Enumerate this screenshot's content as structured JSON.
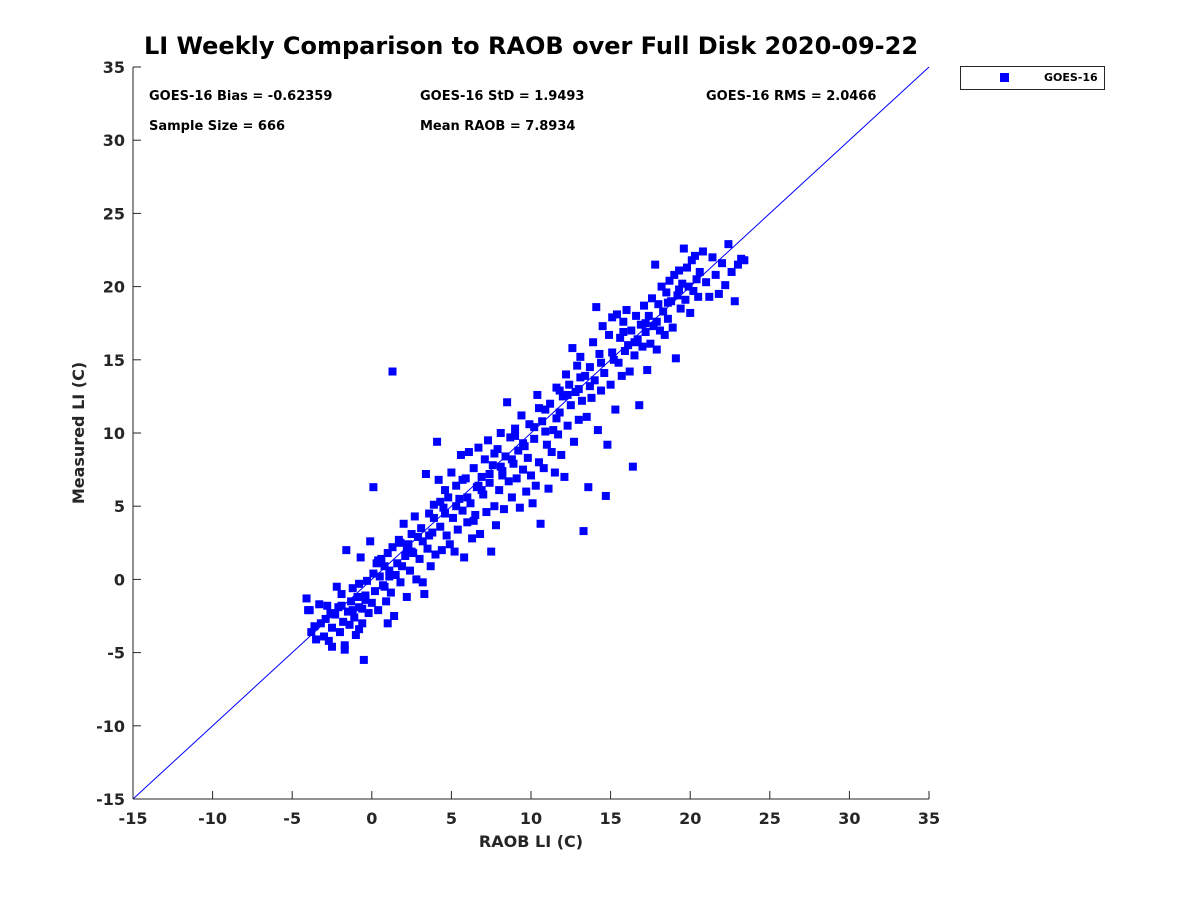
{
  "chart_data": {
    "type": "scatter",
    "title": "LI Weekly Comparison to RAOB over Full Disk 2020-09-22",
    "xlabel": "RAOB LI (C)",
    "ylabel": "Measured LI (C)",
    "xlim": [
      -15,
      35
    ],
    "ylim": [
      -15,
      35
    ],
    "xticks": [
      -15,
      -10,
      -5,
      0,
      5,
      10,
      15,
      20,
      25,
      30,
      35
    ],
    "yticks": [
      -15,
      -10,
      -5,
      0,
      5,
      10,
      15,
      20,
      25,
      30,
      35
    ],
    "legend": {
      "position": "outside-top-right",
      "entries": [
        "GOES-16"
      ]
    },
    "stats": {
      "bias": "GOES-16 Bias = -0.62359",
      "std": "GOES-16 StD = 1.9493",
      "rms": "GOES-16 RMS = 2.0466",
      "sample": "Sample Size = 666",
      "mean": "Mean RAOB = 7.8934"
    },
    "reference_line": {
      "name": "1:1 line",
      "from": [
        -15,
        -15
      ],
      "to": [
        35,
        35
      ]
    },
    "series": [
      {
        "name": "GOES-16",
        "color": "#0000ff",
        "marker": "square",
        "points": [
          [
            -4.1,
            -1.3
          ],
          [
            -3.9,
            -2.1
          ],
          [
            -3.8,
            -3.6
          ],
          [
            -3.6,
            -3.2
          ],
          [
            -3.5,
            -4.1
          ],
          [
            -3.2,
            -3.0
          ],
          [
            -3.0,
            -3.9
          ],
          [
            -2.9,
            -2.7
          ],
          [
            -2.8,
            -1.8
          ],
          [
            -2.7,
            -4.2
          ],
          [
            -2.5,
            -3.3
          ],
          [
            -2.5,
            -4.6
          ],
          [
            -2.3,
            -2.4
          ],
          [
            -2.2,
            -0.5
          ],
          [
            -2.1,
            -1.9
          ],
          [
            -2.0,
            -3.6
          ],
          [
            -1.9,
            -1.0
          ],
          [
            -1.8,
            -2.9
          ],
          [
            -1.7,
            -4.5
          ],
          [
            -1.7,
            -4.8
          ],
          [
            -1.6,
            2.0
          ],
          [
            -1.5,
            -2.2
          ],
          [
            -1.4,
            -3.1
          ],
          [
            -1.3,
            -1.5
          ],
          [
            -1.2,
            -0.6
          ],
          [
            -1.1,
            -2.6
          ],
          [
            -1.0,
            -3.8
          ],
          [
            -0.9,
            -1.2
          ],
          [
            -0.8,
            -0.3
          ],
          [
            -0.8,
            -3.4
          ],
          [
            -0.7,
            1.5
          ],
          [
            -0.6,
            -2.0
          ],
          [
            -0.6,
            -3.0
          ],
          [
            -0.5,
            -5.5
          ],
          [
            -0.4,
            -1.4
          ],
          [
            -0.3,
            -0.1
          ],
          [
            -0.2,
            -2.3
          ],
          [
            -0.1,
            2.6
          ],
          [
            0.0,
            -1.6
          ],
          [
            0.1,
            0.4
          ],
          [
            0.1,
            6.3
          ],
          [
            0.2,
            -0.8
          ],
          [
            0.3,
            1.1
          ],
          [
            0.4,
            -2.1
          ],
          [
            0.5,
            0.2
          ],
          [
            0.6,
            1.4
          ],
          [
            0.7,
            -0.4
          ],
          [
            0.8,
            0.9
          ],
          [
            0.9,
            -1.5
          ],
          [
            1.0,
            -3.0
          ],
          [
            1.0,
            1.8
          ],
          [
            1.1,
            0.6
          ],
          [
            1.2,
            -0.9
          ],
          [
            1.3,
            14.2
          ],
          [
            1.3,
            2.2
          ],
          [
            1.4,
            -2.5
          ],
          [
            1.5,
            0.3
          ],
          [
            1.6,
            1.1
          ],
          [
            1.7,
            2.7
          ],
          [
            1.8,
            -0.2
          ],
          [
            1.9,
            0.9
          ],
          [
            2.0,
            3.8
          ],
          [
            2.1,
            1.6
          ],
          [
            2.2,
            -1.2
          ],
          [
            2.3,
            2.4
          ],
          [
            2.4,
            0.6
          ],
          [
            2.5,
            3.1
          ],
          [
            2.6,
            1.8
          ],
          [
            2.7,
            4.3
          ],
          [
            2.8,
            0.0
          ],
          [
            2.9,
            2.9
          ],
          [
            3.0,
            1.4
          ],
          [
            3.1,
            3.5
          ],
          [
            3.2,
            -0.2
          ],
          [
            3.3,
            -1.0
          ],
          [
            3.4,
            7.2
          ],
          [
            3.5,
            2.1
          ],
          [
            3.6,
            4.5
          ],
          [
            3.7,
            0.9
          ],
          [
            3.8,
            3.2
          ],
          [
            3.9,
            5.1
          ],
          [
            4.0,
            1.7
          ],
          [
            4.1,
            9.4
          ],
          [
            4.2,
            6.8
          ],
          [
            4.3,
            3.6
          ],
          [
            4.4,
            2.0
          ],
          [
            4.5,
            4.9
          ],
          [
            4.6,
            6.1
          ],
          [
            4.7,
            3.0
          ],
          [
            4.8,
            5.6
          ],
          [
            4.9,
            2.4
          ],
          [
            5.0,
            7.3
          ],
          [
            5.1,
            4.2
          ],
          [
            5.2,
            1.9
          ],
          [
            5.3,
            6.4
          ],
          [
            5.4,
            3.4
          ],
          [
            5.5,
            5.5
          ],
          [
            5.6,
            8.5
          ],
          [
            5.7,
            4.7
          ],
          [
            5.8,
            1.5
          ],
          [
            5.9,
            6.9
          ],
          [
            6.0,
            3.9
          ],
          [
            6.1,
            8.7
          ],
          [
            6.2,
            5.2
          ],
          [
            6.3,
            2.8
          ],
          [
            6.4,
            7.6
          ],
          [
            6.5,
            4.4
          ],
          [
            6.6,
            6.3
          ],
          [
            6.7,
            9.0
          ],
          [
            6.8,
            3.1
          ],
          [
            6.9,
            7.0
          ],
          [
            7.0,
            5.8
          ],
          [
            7.1,
            8.2
          ],
          [
            7.2,
            4.6
          ],
          [
            7.3,
            9.5
          ],
          [
            7.4,
            6.6
          ],
          [
            7.5,
            1.9
          ],
          [
            7.6,
            7.8
          ],
          [
            7.7,
            5.0
          ],
          [
            7.8,
            3.7
          ],
          [
            7.9,
            8.9
          ],
          [
            8.0,
            6.1
          ],
          [
            8.1,
            10.0
          ],
          [
            8.2,
            7.4
          ],
          [
            8.3,
            4.8
          ],
          [
            8.4,
            8.4
          ],
          [
            8.5,
            12.1
          ],
          [
            8.6,
            6.7
          ],
          [
            8.7,
            9.7
          ],
          [
            8.8,
            5.6
          ],
          [
            8.9,
            7.9
          ],
          [
            9.0,
            10.3
          ],
          [
            9.1,
            6.9
          ],
          [
            9.2,
            8.8
          ],
          [
            9.3,
            4.9
          ],
          [
            9.4,
            11.2
          ],
          [
            9.5,
            7.5
          ],
          [
            9.6,
            9.1
          ],
          [
            9.7,
            6.0
          ],
          [
            9.8,
            8.3
          ],
          [
            9.9,
            10.6
          ],
          [
            10.0,
            7.1
          ],
          [
            10.1,
            5.2
          ],
          [
            10.2,
            9.6
          ],
          [
            10.3,
            6.4
          ],
          [
            10.4,
            12.6
          ],
          [
            10.5,
            8.0
          ],
          [
            10.6,
            3.8
          ],
          [
            10.7,
            10.8
          ],
          [
            10.8,
            7.6
          ],
          [
            10.9,
            11.6
          ],
          [
            11.0,
            9.2
          ],
          [
            11.1,
            6.2
          ],
          [
            11.2,
            12.0
          ],
          [
            11.3,
            8.7
          ],
          [
            11.4,
            10.2
          ],
          [
            11.5,
            7.3
          ],
          [
            11.6,
            13.1
          ],
          [
            11.7,
            9.9
          ],
          [
            11.8,
            11.4
          ],
          [
            11.9,
            8.5
          ],
          [
            12.0,
            12.5
          ],
          [
            12.1,
            7.0
          ],
          [
            12.2,
            14.0
          ],
          [
            12.3,
            10.5
          ],
          [
            12.4,
            13.3
          ],
          [
            12.5,
            11.9
          ],
          [
            12.6,
            15.8
          ],
          [
            12.7,
            9.4
          ],
          [
            12.8,
            12.8
          ],
          [
            12.9,
            14.6
          ],
          [
            13.0,
            10.9
          ],
          [
            13.1,
            15.2
          ],
          [
            13.2,
            12.2
          ],
          [
            13.3,
            3.3
          ],
          [
            13.4,
            13.9
          ],
          [
            13.5,
            11.1
          ],
          [
            13.6,
            6.3
          ],
          [
            13.7,
            14.5
          ],
          [
            13.8,
            12.4
          ],
          [
            13.9,
            16.2
          ],
          [
            14.0,
            13.6
          ],
          [
            14.1,
            18.6
          ],
          [
            14.2,
            10.2
          ],
          [
            14.3,
            15.4
          ],
          [
            14.4,
            12.9
          ],
          [
            14.5,
            17.3
          ],
          [
            14.6,
            14.1
          ],
          [
            14.7,
            5.7
          ],
          [
            14.8,
            9.2
          ],
          [
            14.9,
            16.7
          ],
          [
            15.0,
            13.3
          ],
          [
            15.1,
            17.9
          ],
          [
            15.2,
            15.0
          ],
          [
            15.3,
            11.6
          ],
          [
            15.4,
            18.1
          ],
          [
            15.5,
            14.8
          ],
          [
            15.6,
            16.5
          ],
          [
            15.7,
            13.9
          ],
          [
            15.8,
            17.6
          ],
          [
            15.9,
            15.6
          ],
          [
            16.0,
            18.4
          ],
          [
            16.1,
            16.0
          ],
          [
            16.2,
            14.2
          ],
          [
            16.3,
            17.0
          ],
          [
            16.4,
            7.7
          ],
          [
            16.5,
            15.3
          ],
          [
            16.6,
            18.0
          ],
          [
            16.7,
            16.4
          ],
          [
            16.8,
            11.9
          ],
          [
            16.9,
            17.4
          ],
          [
            17.0,
            15.9
          ],
          [
            17.1,
            18.7
          ],
          [
            17.2,
            16.9
          ],
          [
            17.3,
            14.3
          ],
          [
            17.4,
            18.0
          ],
          [
            17.5,
            16.1
          ],
          [
            17.6,
            19.2
          ],
          [
            17.7,
            17.3
          ],
          [
            17.8,
            21.5
          ],
          [
            17.9,
            15.7
          ],
          [
            18.0,
            18.8
          ],
          [
            18.1,
            17.0
          ],
          [
            18.2,
            20.0
          ],
          [
            18.3,
            18.3
          ],
          [
            18.4,
            16.7
          ],
          [
            18.5,
            19.6
          ],
          [
            18.6,
            17.8
          ],
          [
            18.7,
            20.4
          ],
          [
            18.8,
            19.0
          ],
          [
            18.9,
            17.2
          ],
          [
            19.0,
            20.8
          ],
          [
            19.1,
            15.1
          ],
          [
            19.2,
            19.4
          ],
          [
            19.3,
            21.1
          ],
          [
            19.4,
            18.5
          ],
          [
            19.5,
            20.2
          ],
          [
            19.6,
            22.6
          ],
          [
            19.7,
            19.1
          ],
          [
            19.8,
            21.3
          ],
          [
            19.9,
            20.0
          ],
          [
            20.0,
            18.2
          ],
          [
            20.1,
            21.8
          ],
          [
            20.2,
            19.7
          ],
          [
            20.3,
            22.1
          ],
          [
            20.4,
            20.5
          ],
          [
            20.5,
            19.3
          ],
          [
            20.6,
            21.0
          ],
          [
            20.8,
            22.4
          ],
          [
            21.0,
            20.3
          ],
          [
            21.2,
            19.3
          ],
          [
            21.4,
            22.0
          ],
          [
            21.6,
            20.8
          ],
          [
            21.8,
            19.5
          ],
          [
            22.0,
            21.6
          ],
          [
            22.2,
            20.1
          ],
          [
            22.4,
            22.9
          ],
          [
            22.6,
            21.0
          ],
          [
            22.8,
            19.0
          ],
          [
            23.0,
            21.5
          ],
          [
            23.2,
            21.9
          ],
          [
            23.4,
            21.8
          ],
          [
            -4.0,
            -2.1
          ],
          [
            -3.3,
            -1.7
          ],
          [
            -2.6,
            -2.3
          ],
          [
            -1.9,
            -1.8
          ],
          [
            -1.2,
            -2.1
          ],
          [
            -0.4,
            -1.1
          ],
          [
            0.4,
            1.3
          ],
          [
            1.1,
            0.2
          ],
          [
            1.8,
            2.5
          ],
          [
            2.5,
            1.9
          ],
          [
            3.2,
            2.6
          ],
          [
            3.9,
            4.2
          ],
          [
            4.6,
            4.5
          ],
          [
            5.3,
            5.0
          ],
          [
            6.0,
            5.6
          ],
          [
            6.7,
            6.4
          ],
          [
            7.4,
            7.2
          ],
          [
            8.1,
            7.7
          ],
          [
            8.8,
            8.2
          ],
          [
            9.5,
            9.3
          ],
          [
            10.2,
            10.4
          ],
          [
            10.9,
            10.1
          ],
          [
            11.6,
            11.0
          ],
          [
            12.3,
            12.6
          ],
          [
            13.0,
            13.0
          ],
          [
            13.7,
            13.2
          ],
          [
            14.4,
            14.8
          ],
          [
            15.1,
            15.5
          ],
          [
            15.8,
            16.9
          ],
          [
            16.5,
            16.2
          ],
          [
            17.2,
            17.5
          ],
          [
            17.9,
            17.6
          ],
          [
            18.6,
            18.9
          ],
          [
            19.3,
            19.8
          ],
          [
            4.3,
            5.3
          ],
          [
            5.7,
            6.8
          ],
          [
            6.9,
            6.1
          ],
          [
            8.2,
            7.1
          ],
          [
            2.2,
            2.1
          ],
          [
            3.6,
            3.0
          ],
          [
            0.8,
            -0.5
          ],
          [
            -0.8,
            -1.9
          ],
          [
            6.4,
            4.0
          ],
          [
            7.7,
            8.6
          ],
          [
            9.0,
            9.8
          ],
          [
            10.5,
            11.7
          ],
          [
            11.8,
            12.9
          ],
          [
            13.1,
            13.8
          ]
        ]
      }
    ]
  }
}
